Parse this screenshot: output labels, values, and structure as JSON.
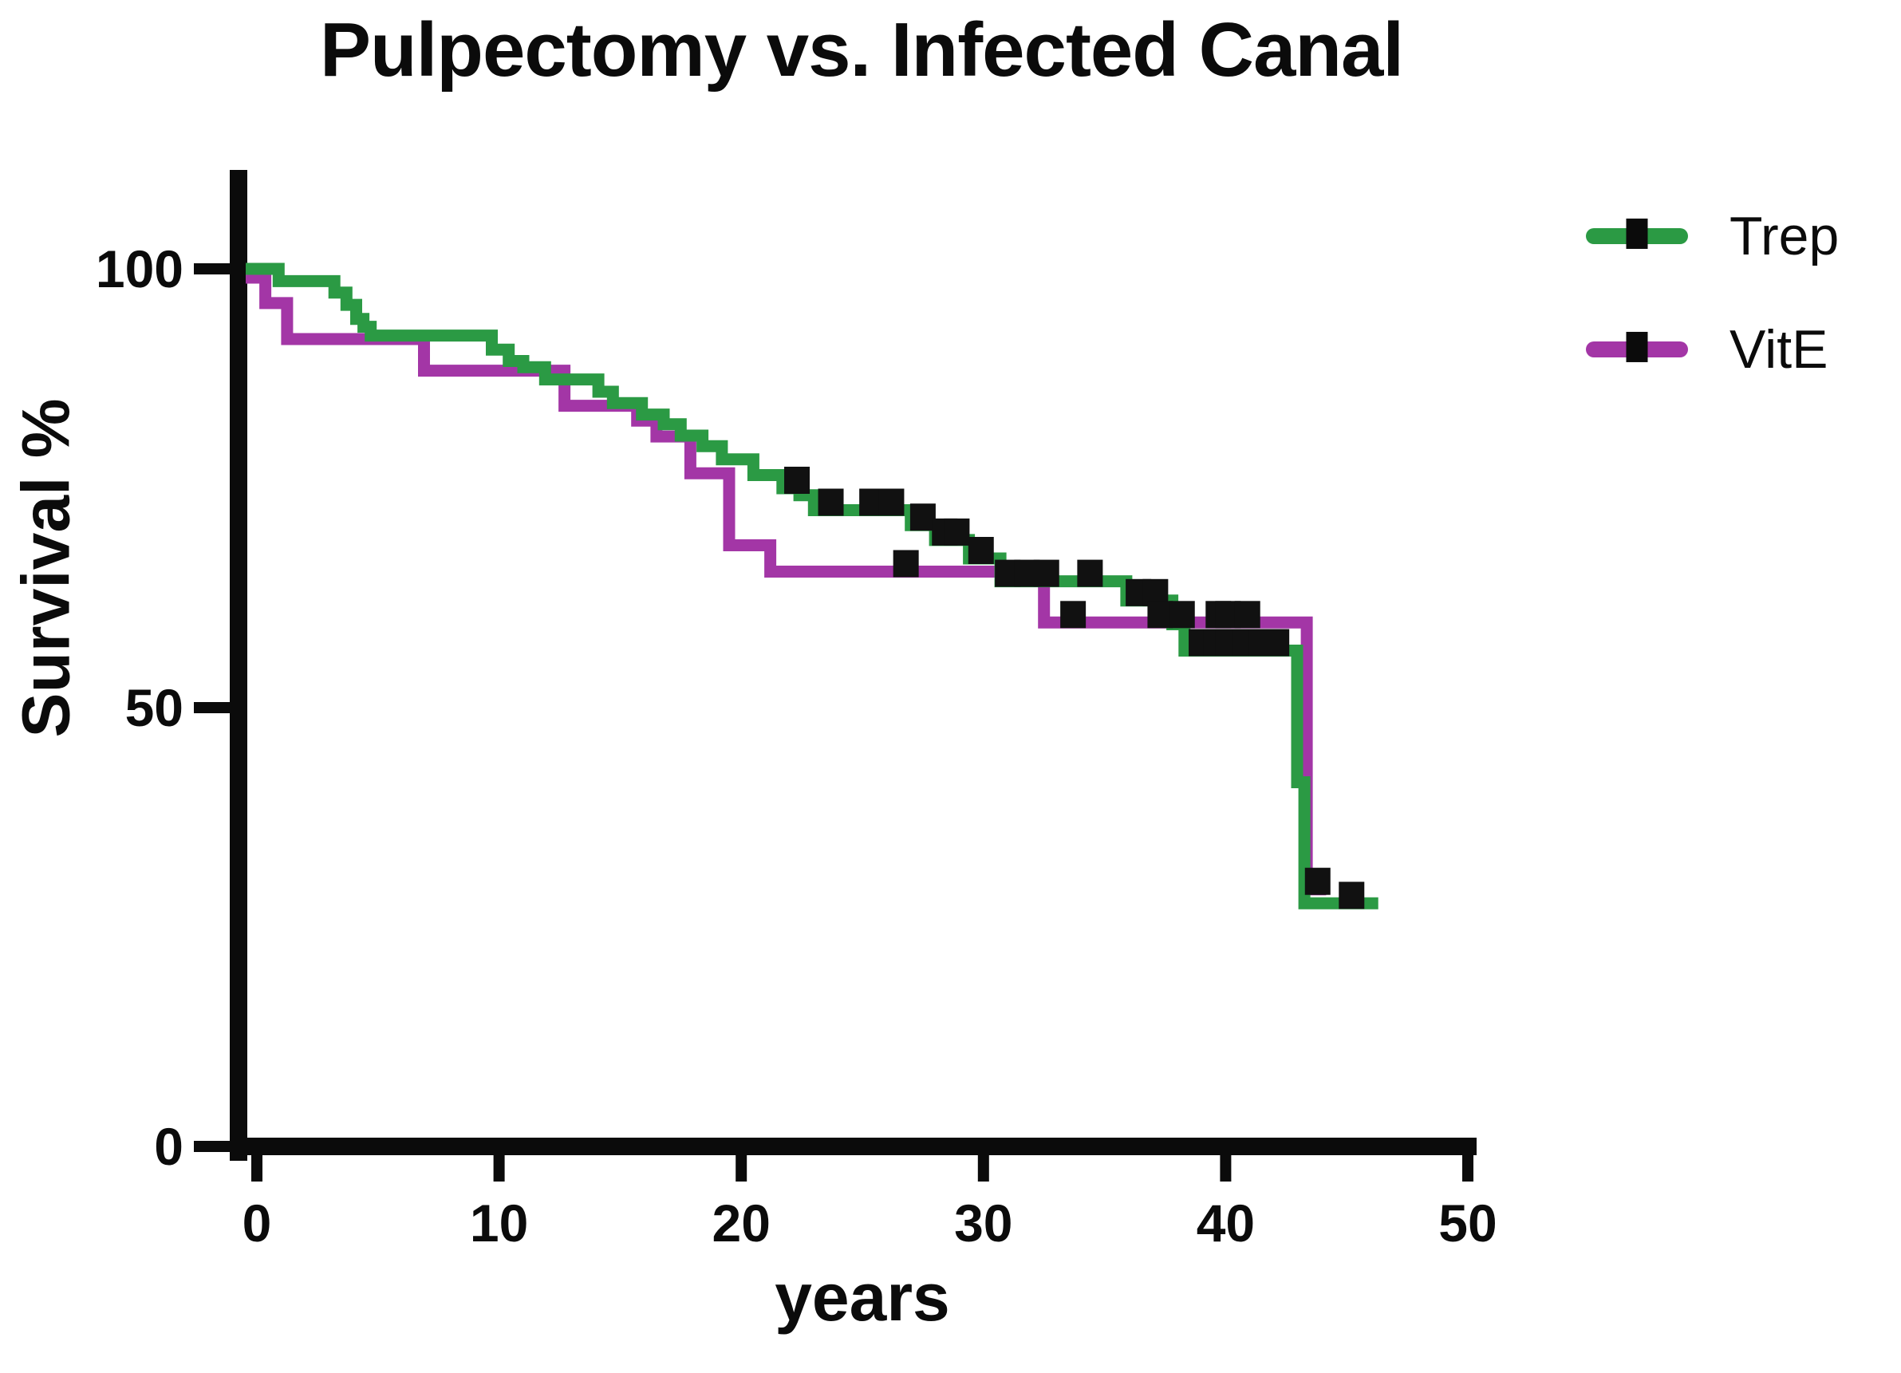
{
  "title": "Pulpectomy vs. Infected Canal",
  "x_axis": {
    "label": "years",
    "ticks": [
      0,
      10,
      20,
      30,
      40,
      50
    ]
  },
  "y_axis": {
    "label": "Survival %",
    "ticks": [
      0,
      50,
      100
    ]
  },
  "legend": [
    {
      "name": "Trep",
      "color": "#2B9A44"
    },
    {
      "name": "VitE",
      "color": "#A336A6"
    }
  ],
  "colors": {
    "trep_green": "#2B9A44",
    "vite_purple": "#A336A6",
    "axis_black": "#0b0b0b",
    "censor_black": "#111111",
    "background": "#ffffff"
  },
  "chart_data": {
    "type": "line",
    "subtype": "kaplan-meier-step",
    "title": "Pulpectomy vs. Infected Canal",
    "xlabel": "years",
    "ylabel": "Survival %",
    "xlim": [
      0,
      50
    ],
    "ylim": [
      0,
      100
    ],
    "x_ticks": [
      0,
      10,
      20,
      30,
      40,
      50
    ],
    "y_ticks": [
      0,
      50,
      100
    ],
    "grid": false,
    "legend_position": "right",
    "series": [
      {
        "name": "Trep",
        "color": "#2B9A44",
        "steps": [
          [
            0,
            100
          ],
          [
            0.9,
            100
          ],
          [
            0.9,
            98.6
          ],
          [
            3.2,
            98.6
          ],
          [
            3.2,
            97.3
          ],
          [
            3.7,
            97.3
          ],
          [
            3.7,
            95.9
          ],
          [
            4.1,
            95.9
          ],
          [
            4.1,
            94.3
          ],
          [
            4.4,
            94.3
          ],
          [
            4.4,
            93.4
          ],
          [
            4.7,
            93.4
          ],
          [
            4.7,
            92.4
          ],
          [
            9.7,
            92.4
          ],
          [
            9.7,
            90.8
          ],
          [
            10.4,
            90.8
          ],
          [
            10.4,
            89.5
          ],
          [
            11,
            89.5
          ],
          [
            11,
            88.8
          ],
          [
            11.9,
            88.8
          ],
          [
            11.9,
            87.4
          ],
          [
            14.1,
            87.4
          ],
          [
            14.1,
            86
          ],
          [
            14.7,
            86
          ],
          [
            14.7,
            84.7
          ],
          [
            15.9,
            84.7
          ],
          [
            15.9,
            83.4
          ],
          [
            16.8,
            83.4
          ],
          [
            16.8,
            82.3
          ],
          [
            17.5,
            82.3
          ],
          [
            17.5,
            81
          ],
          [
            18.4,
            81
          ],
          [
            18.4,
            79.8
          ],
          [
            19.2,
            79.8
          ],
          [
            19.2,
            78.3
          ],
          [
            20.5,
            78.3
          ],
          [
            20.5,
            76.5
          ],
          [
            21.7,
            76.5
          ],
          [
            21.7,
            75
          ],
          [
            22.4,
            75
          ],
          [
            22.4,
            74.2
          ],
          [
            23,
            74.2
          ],
          [
            23,
            72.5
          ],
          [
            27,
            72.5
          ],
          [
            27,
            70.8
          ],
          [
            28,
            70.8
          ],
          [
            28,
            69.1
          ],
          [
            29.4,
            69.1
          ],
          [
            29.4,
            67
          ],
          [
            30.7,
            67
          ],
          [
            30.7,
            64.4
          ],
          [
            35.9,
            64.4
          ],
          [
            35.9,
            62.2
          ],
          [
            37.8,
            62.2
          ],
          [
            37.8,
            59.5
          ],
          [
            38.3,
            59.5
          ],
          [
            38.3,
            56.5
          ],
          [
            42.95,
            56.5
          ],
          [
            42.95,
            41.5
          ],
          [
            43.25,
            41.5
          ],
          [
            43.25,
            27.7
          ],
          [
            46.3,
            27.7
          ]
        ],
        "censor_marks": [
          [
            22.3,
            75
          ],
          [
            23.7,
            72.5
          ],
          [
            25.4,
            72.5
          ],
          [
            26.2,
            72.5
          ],
          [
            27.5,
            70.8
          ],
          [
            28.4,
            69.1
          ],
          [
            28.9,
            69.1
          ],
          [
            29.9,
            67
          ],
          [
            31,
            64.4
          ],
          [
            31.8,
            64.4
          ],
          [
            32.6,
            64.4
          ],
          [
            34.4,
            64.4
          ],
          [
            36.4,
            62.2
          ],
          [
            37.1,
            62.2
          ],
          [
            39,
            56.5
          ],
          [
            39.6,
            56.5
          ],
          [
            40.1,
            56.5
          ],
          [
            40.8,
            56.5
          ],
          [
            41.5,
            56.5
          ],
          [
            42.1,
            56.5
          ],
          [
            45.2,
            27.7
          ]
        ]
      },
      {
        "name": "VitE",
        "color": "#A336A6",
        "steps": [
          [
            0,
            99
          ],
          [
            0.35,
            99
          ],
          [
            0.35,
            96.1
          ],
          [
            1.25,
            96.1
          ],
          [
            1.25,
            92
          ],
          [
            6.9,
            92
          ],
          [
            6.9,
            88.4
          ],
          [
            12.7,
            88.4
          ],
          [
            12.7,
            84.4
          ],
          [
            15.7,
            84.4
          ],
          [
            15.7,
            82.7
          ],
          [
            16.5,
            82.7
          ],
          [
            16.5,
            80.9
          ],
          [
            17.9,
            80.9
          ],
          [
            17.9,
            76.7
          ],
          [
            19.5,
            76.7
          ],
          [
            19.5,
            68.5
          ],
          [
            21.2,
            68.5
          ],
          [
            21.2,
            65.5
          ],
          [
            32.5,
            65.5
          ],
          [
            32.5,
            59.7
          ],
          [
            43.35,
            59.7
          ],
          [
            43.35,
            29.3
          ],
          [
            44.15,
            29.3
          ]
        ],
        "censor_marks": [
          [
            26.8,
            65.5
          ],
          [
            33.7,
            59.7
          ],
          [
            37.3,
            59.7
          ],
          [
            38.2,
            59.7
          ],
          [
            39.7,
            59.7
          ],
          [
            40.1,
            59.7
          ],
          [
            40.9,
            59.7
          ],
          [
            43.8,
            29.3
          ]
        ]
      }
    ]
  }
}
